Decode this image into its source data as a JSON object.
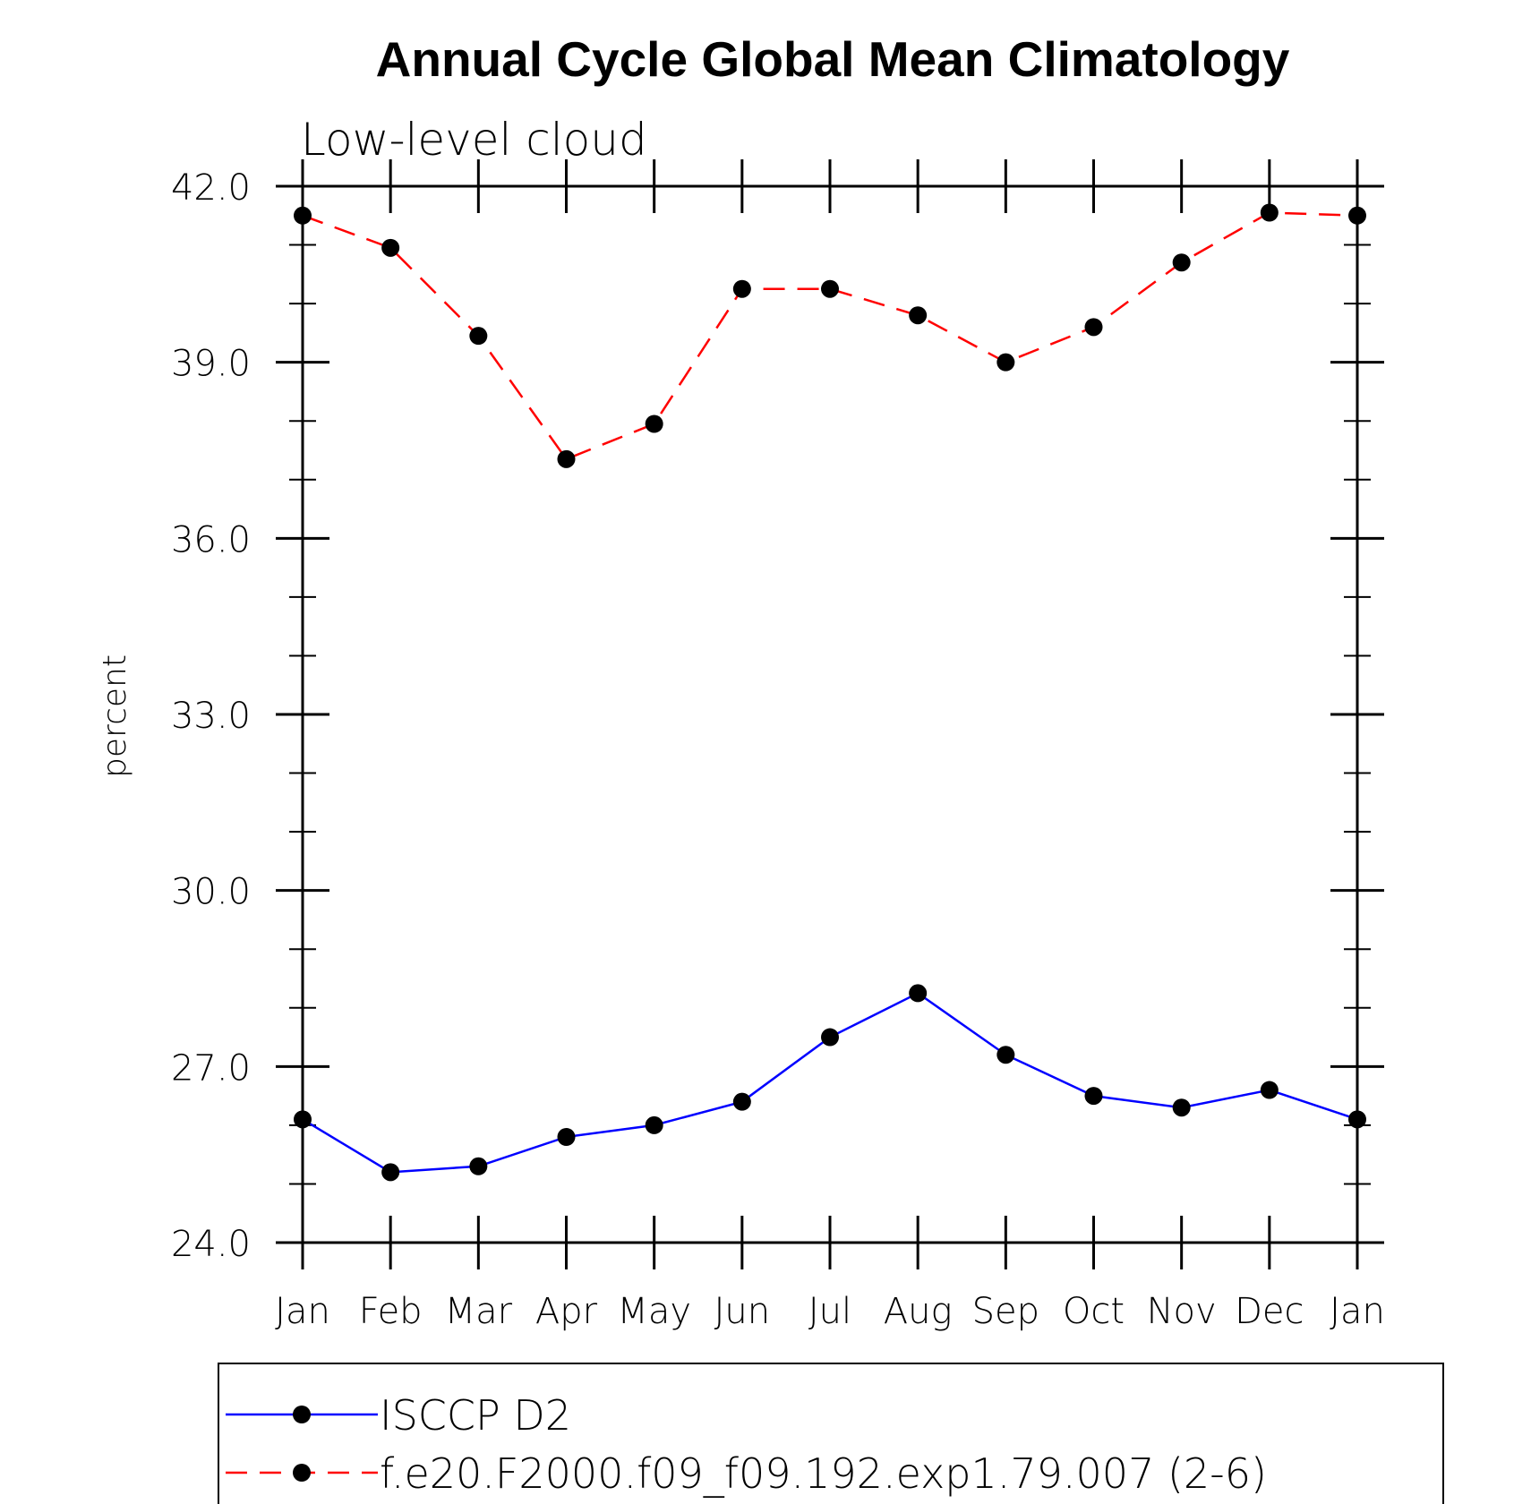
{
  "chart_data": {
    "type": "line",
    "title": "Annual Cycle Global Mean Climatology",
    "subtitle": "Low-level cloud",
    "xlabel": "",
    "ylabel": "percent",
    "categories": [
      "Jan",
      "Feb",
      "Mar",
      "Apr",
      "May",
      "Jun",
      "Jul",
      "Aug",
      "Sep",
      "Oct",
      "Nov",
      "Dec",
      "Jan"
    ],
    "ylim": [
      24.0,
      42.0
    ],
    "y_major_ticks": [
      24.0,
      27.0,
      30.0,
      33.0,
      36.0,
      39.0,
      42.0
    ],
    "y_tick_labels": [
      "24.0",
      "27.0",
      "30.0",
      "33.0",
      "36.0",
      "39.0",
      "42.0"
    ],
    "y_minor_step": 1.0,
    "grid": false,
    "legend_position": "bottom",
    "series": [
      {
        "name": "ISCCP D2",
        "color": "#0000ff",
        "line_style": "solid",
        "marker": "filled-circle",
        "marker_color": "#000000",
        "values": [
          26.1,
          25.2,
          25.3,
          25.8,
          26.0,
          26.4,
          27.5,
          28.25,
          27.2,
          26.5,
          26.3,
          26.6,
          26.1
        ]
      },
      {
        "name": "f.e20.F2000.f09_f09.192.exp1.79.007 (2-6)",
        "color": "#ff0000",
        "line_style": "dashed",
        "marker": "filled-circle",
        "marker_color": "#000000",
        "values": [
          41.5,
          40.95,
          39.45,
          37.35,
          37.95,
          40.25,
          40.25,
          39.8,
          39.0,
          39.6,
          40.7,
          41.55,
          41.5
        ]
      }
    ]
  }
}
